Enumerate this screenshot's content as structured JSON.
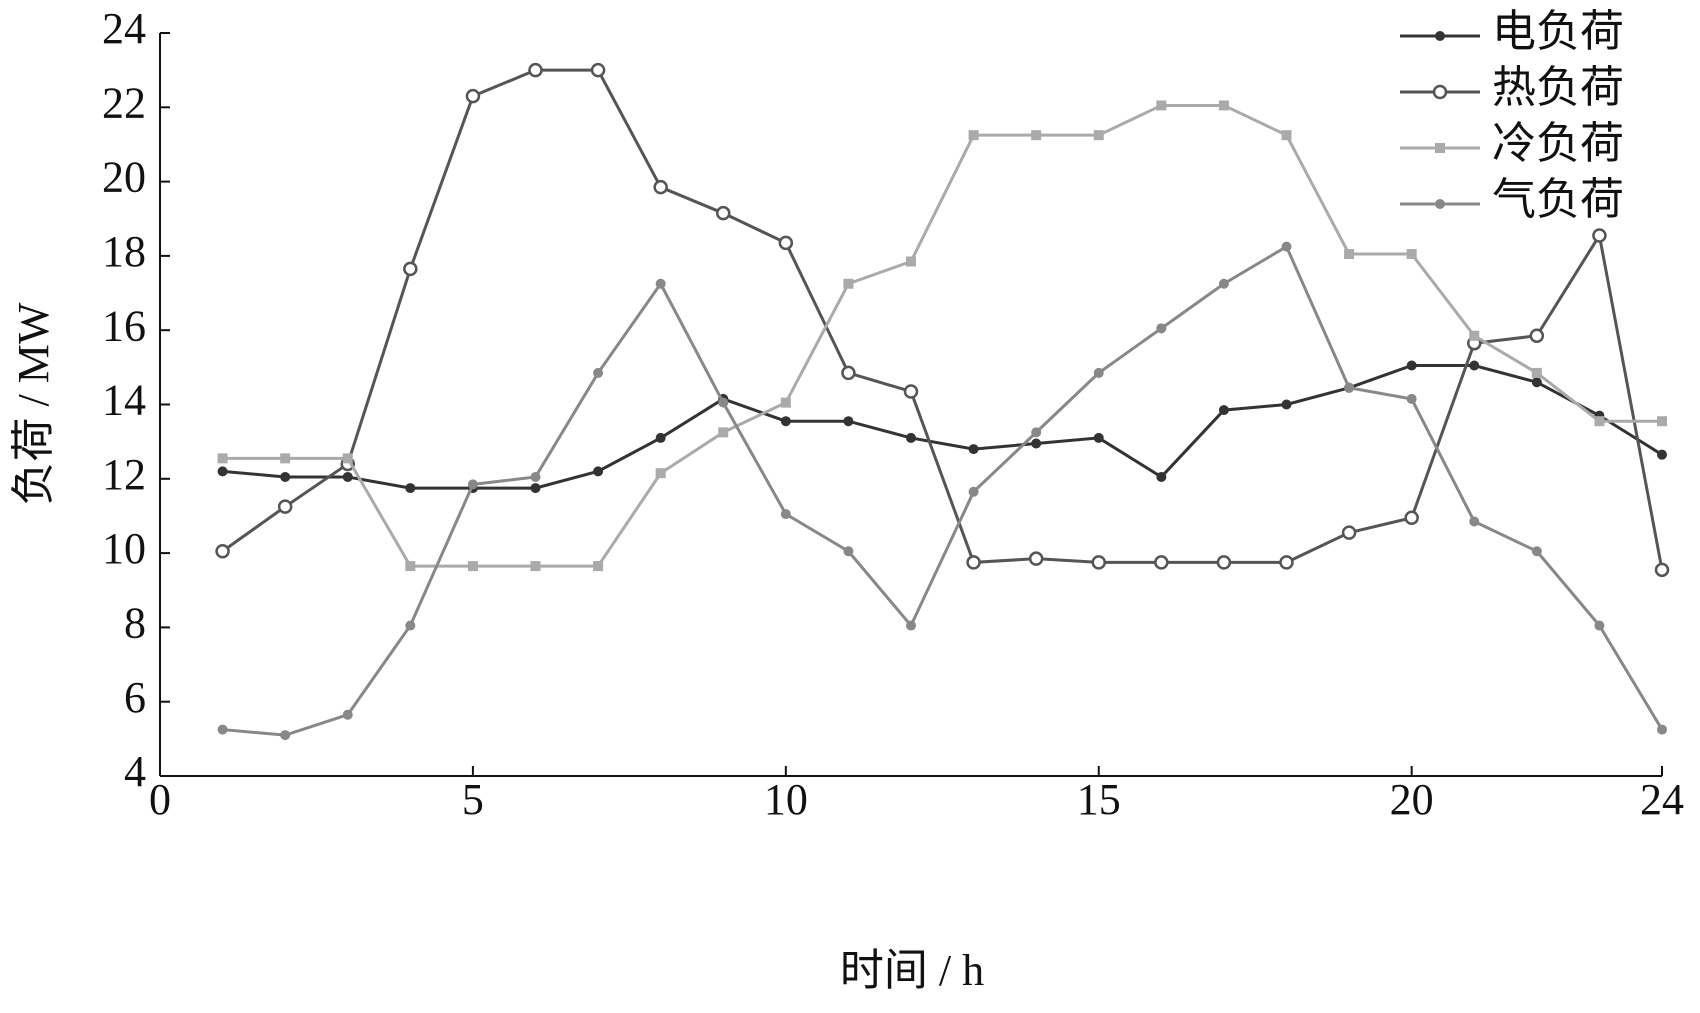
{
  "chart_data": {
    "type": "line",
    "x_label": "时间 / h",
    "y_label": "负荷 / MW",
    "x": [
      1,
      2,
      3,
      4,
      5,
      6,
      7,
      8,
      9,
      10,
      11,
      12,
      13,
      14,
      15,
      16,
      17,
      18,
      19,
      20,
      21,
      22,
      23,
      24
    ],
    "series": [
      {
        "name": "电负荷",
        "color": "#333333",
        "marker": "dot",
        "values": [
          12.2,
          12.05,
          12.05,
          11.75,
          11.75,
          11.75,
          12.2,
          13.1,
          14.15,
          13.55,
          13.55,
          13.1,
          12.8,
          12.95,
          13.1,
          12.05,
          13.85,
          14.0,
          14.45,
          15.05,
          15.05,
          14.6,
          13.7,
          12.65
        ]
      },
      {
        "name": "热负荷",
        "color": "#555555",
        "marker": "open-circle",
        "values": [
          10.05,
          11.25,
          12.4,
          17.65,
          22.3,
          23.0,
          23.0,
          19.85,
          19.15,
          18.35,
          14.85,
          14.35,
          9.75,
          9.85,
          9.75,
          9.75,
          9.75,
          9.75,
          10.55,
          10.95,
          15.65,
          15.85,
          18.55,
          9.55
        ]
      },
      {
        "name": "冷负荷",
        "color": "#aaaaaa",
        "marker": "square",
        "values": [
          12.55,
          12.55,
          12.55,
          9.65,
          9.65,
          9.65,
          9.65,
          12.15,
          13.25,
          14.05,
          17.25,
          17.85,
          21.25,
          21.25,
          21.25,
          22.05,
          22.05,
          21.25,
          18.05,
          18.05,
          15.85,
          14.85,
          13.55,
          13.55
        ]
      },
      {
        "name": "气负荷",
        "color": "#888888",
        "marker": "dot",
        "values": [
          5.25,
          5.1,
          5.65,
          8.05,
          11.85,
          12.05,
          14.85,
          17.25,
          14.05,
          11.05,
          10.05,
          8.05,
          11.65,
          13.25,
          14.85,
          16.05,
          17.25,
          18.25,
          14.45,
          14.15,
          10.85,
          10.05,
          8.05,
          5.25
        ]
      }
    ],
    "xlim": [
      0,
      24
    ],
    "xticks": [
      0,
      5,
      10,
      15,
      20,
      24
    ],
    "ylim": [
      4,
      24
    ],
    "yticks": [
      4,
      6,
      8,
      10,
      12,
      14,
      16,
      18,
      20,
      22,
      24
    ],
    "legend": "top-right",
    "grid": false
  }
}
